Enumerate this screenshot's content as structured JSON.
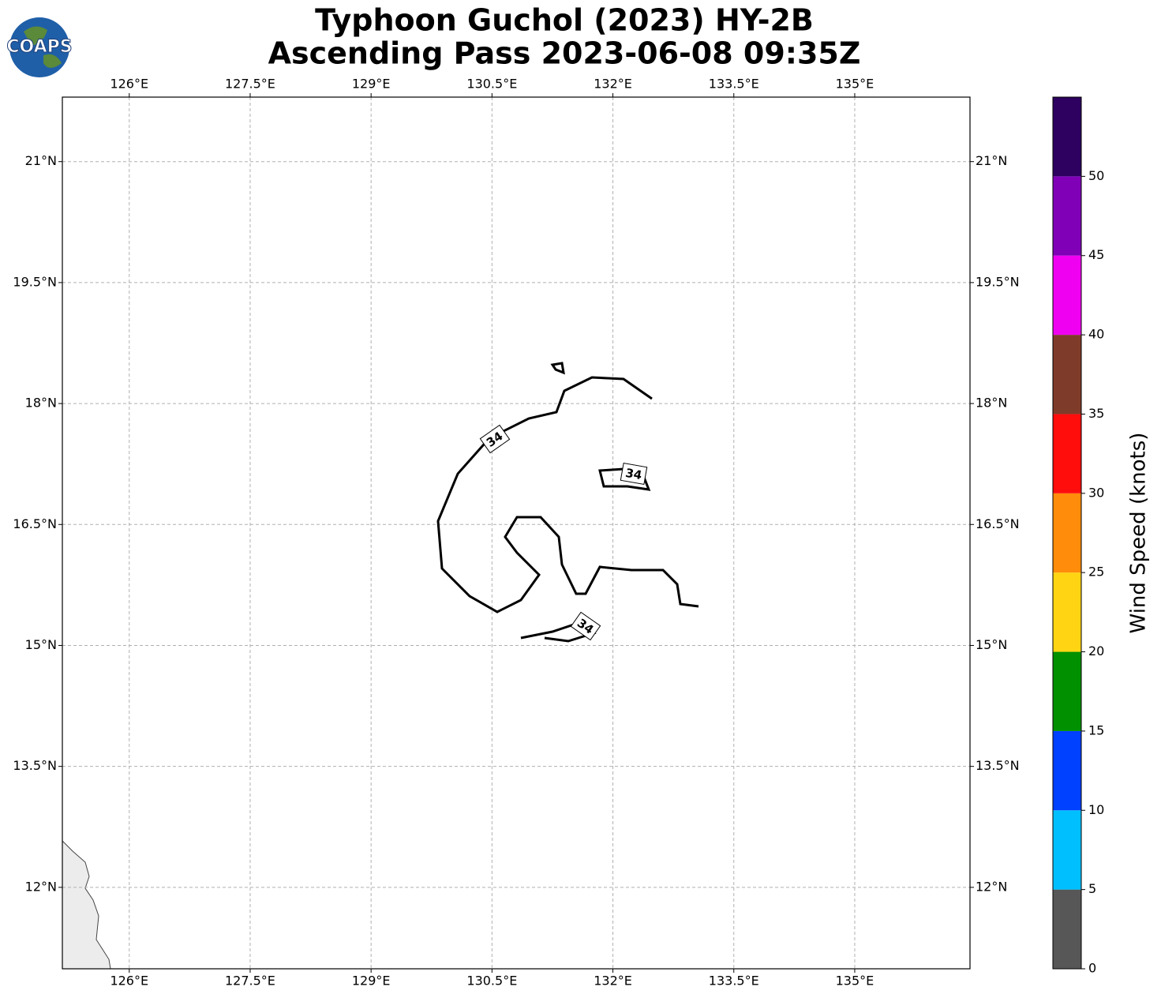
{
  "chart_data": {
    "type": "wind-map",
    "title": "Typhoon Guchol (2023) HY-2B",
    "subtitle": "Ascending Pass 2023-06-08 09:35Z",
    "logo": "COAPS",
    "xlim": [
      125.17,
      136.43
    ],
    "ylim": [
      10.99,
      21.8
    ],
    "xticks": [
      {
        "value": 126,
        "label": "126°E"
      },
      {
        "value": 127.5,
        "label": "127.5°E"
      },
      {
        "value": 129,
        "label": "129°E"
      },
      {
        "value": 130.5,
        "label": "130.5°E"
      },
      {
        "value": 132,
        "label": "132°E"
      },
      {
        "value": 133.5,
        "label": "133.5°E"
      },
      {
        "value": 135,
        "label": "135°E"
      }
    ],
    "yticks": [
      {
        "value": 12,
        "label": "12°N"
      },
      {
        "value": 13.5,
        "label": "13.5°N"
      },
      {
        "value": 15,
        "label": "15°N"
      },
      {
        "value": 16.5,
        "label": "16.5°N"
      },
      {
        "value": 18,
        "label": "18°N"
      },
      {
        "value": 19.5,
        "label": "19.5°N"
      },
      {
        "value": 21,
        "label": "21°N"
      }
    ],
    "grid": true,
    "contour_level": 34,
    "colorbar": {
      "label": "Wind Speed (knots)",
      "bounds": [
        0,
        5,
        10,
        15,
        20,
        25,
        30,
        35,
        40,
        45,
        50,
        55
      ],
      "colors": [
        "#575757",
        "#00bfff",
        "#0040ff",
        "#009000",
        "#ffd513",
        "#ff8c0a",
        "#ff0d0d",
        "#7f3b2a",
        "#f000f0",
        "#8000b8",
        "#2e0060"
      ],
      "ticks": [
        0,
        5,
        10,
        15,
        20,
        25,
        30,
        35,
        40,
        45,
        50
      ]
    }
  }
}
